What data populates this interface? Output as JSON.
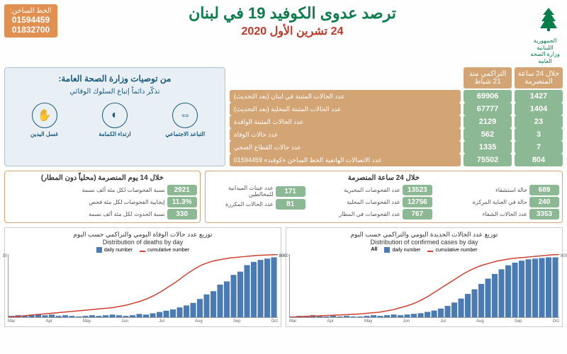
{
  "header": {
    "country": "الجمهورية اللبنانية",
    "ministry": "وزارة الصحة العامة",
    "title": "ترصد عدوى الكوفيد 19 في لبنان",
    "date": "24 تشرين الأول 2020",
    "hotline_label": "الخط الساخن:",
    "hotline_1": "01594459",
    "hotline_2": "01832700",
    "logo_color": "#0a7d4a"
  },
  "col_headers": {
    "h24": "خلال 24 ساعة المنصرمة",
    "cumulative": "التراكمي منذ 21 شباط"
  },
  "stats": [
    {
      "h24": "1427",
      "cum": "69906",
      "label": "عدد الحالات المثبتة في لبنان (بعد التحديث)"
    },
    {
      "h24": "1404",
      "cum": "67777",
      "label": "عدد الحالات المثبتة المحلية (بعد التحديث)"
    },
    {
      "h24": "23",
      "cum": "2129",
      "label": "عدد الحالات المثبتة الوافدة"
    },
    {
      "h24": "3",
      "cum": "562",
      "label": "عدد حالات الوفاة"
    },
    {
      "h24": "7",
      "cum": "1335",
      "label": "عدد حالات القطاع الصحي"
    },
    {
      "h24": "804",
      "cum": "75502",
      "label": "عدد الاتصالات الهاتفية الخط الساخن «كوفيد» 01594459"
    }
  ],
  "recommendations": {
    "title": "من توصيات وزارة الصحة العامة:",
    "subtitle": "تذكّر دائماً إتباع السلوك الوقائي",
    "icons": [
      {
        "name": "social-distance",
        "label": "التباعد الاجتماعي",
        "glyph": "⇔"
      },
      {
        "name": "mask",
        "label": "ارتداء الكمامة",
        "glyph": "◐"
      },
      {
        "name": "hand-wash",
        "label": "غسل اليدين",
        "glyph": "✋"
      }
    ]
  },
  "mid_left": {
    "title": "خلال 14 يوم المنصرمة (محلياً دون المطار)",
    "items": [
      {
        "val": "2921",
        "label": "نسبة الفحوصات لكل مئة ألف نسمة"
      },
      {
        "val": "11.3%",
        "label": "إيجابية الفحوصات لكل مئة فحص"
      },
      {
        "val": "330",
        "label": "نسبة الحدوث لكل مئة ألف نسمة"
      }
    ]
  },
  "mid_right": {
    "title": "خلال 24 ساعة المنصرمة",
    "col1": [
      {
        "val": "689",
        "label": "حالة استشفاء"
      },
      {
        "val": "240",
        "label": "حالة في العناية المركزة"
      },
      {
        "val": "3353",
        "label": "عدد الحالات الشفاء"
      }
    ],
    "col2": [
      {
        "val": "13523",
        "label": "عدد الفحوصات المخبرية"
      },
      {
        "val": "12756",
        "label": "عدد الفحوصات المحلية"
      },
      {
        "val": "767",
        "label": "عدد الفحوصات في المطار"
      }
    ],
    "col3": [
      {
        "val": "171",
        "label": "عدد عينات الميدانية للمخالطين"
      },
      {
        "val": "81",
        "label": "عدد الحالات المكررة"
      }
    ]
  },
  "charts": {
    "deaths": {
      "title_ar": "توزيع عدد حالات الوفاة اليومي والتراكمي حسب اليوم",
      "title_en": "Distribution of deaths by day",
      "legend_daily": "daily number",
      "legend_cum": "cumulative number",
      "daily_color": "#4a7bb5",
      "cum_color": "#d04030",
      "y_left_max": "30",
      "y_right_max": "600",
      "months": [
        "Mar",
        "Apr",
        "May",
        "Jun",
        "Jul",
        "Aug",
        "Sep",
        "Oct"
      ],
      "bars": [
        2,
        3,
        2,
        4,
        5,
        3,
        4,
        2,
        3,
        2,
        1,
        2,
        3,
        2,
        3,
        4,
        3,
        2,
        3,
        5,
        4,
        6,
        8,
        10,
        12,
        15,
        18,
        22,
        28,
        35,
        40,
        50,
        55,
        65,
        70,
        80,
        85,
        88,
        90,
        92
      ],
      "curve": [
        0,
        1,
        2,
        3,
        4,
        5,
        6,
        7,
        8,
        9,
        10,
        11,
        12,
        13,
        14,
        15,
        17,
        19,
        22,
        25,
        29,
        34,
        40,
        47,
        54,
        62,
        70,
        77,
        83,
        87,
        90,
        92,
        94,
        95,
        96,
        97,
        98,
        98.5,
        99,
        99.5
      ]
    },
    "cases": {
      "title_ar": "توزيع عدد الحالات الجديدة اليومي والتراكمي حسب اليوم",
      "title_en": "Distribution of confirmed cases by day",
      "all_label": "All",
      "legend_daily": "daily number",
      "legend_cum": "cumulative number",
      "daily_color": "#4a7bb5",
      "cum_color": "#d04030",
      "y_left_max": "2000",
      "y_right_max": "80000",
      "months": [
        "Mar",
        "Apr",
        "May",
        "Jun",
        "Jul",
        "Aug",
        "Sep",
        "Oct"
      ],
      "bars": [
        1,
        2,
        2,
        3,
        2,
        1,
        2,
        1,
        2,
        1,
        1,
        2,
        3,
        2,
        3,
        4,
        3,
        4,
        5,
        6,
        8,
        10,
        13,
        17,
        22,
        28,
        35,
        42,
        50,
        58,
        65,
        72,
        78,
        82,
        85,
        87,
        88,
        89,
        90,
        90
      ],
      "curve": [
        0,
        0.5,
        1,
        1.5,
        2,
        2.5,
        3,
        3.5,
        4,
        4.5,
        5,
        6,
        7,
        8,
        10,
        12,
        15,
        18,
        22,
        27,
        33,
        40,
        47,
        54,
        61,
        68,
        74,
        79,
        83,
        86,
        89,
        91,
        93,
        94,
        95,
        96,
        97,
        98,
        99,
        99.5
      ]
    }
  },
  "colors": {
    "green": "#8db894",
    "tan": "#d4a574",
    "darkgreen": "#0a7d4a",
    "red": "#c0392b",
    "blue_panel": "#e8f0f5"
  }
}
